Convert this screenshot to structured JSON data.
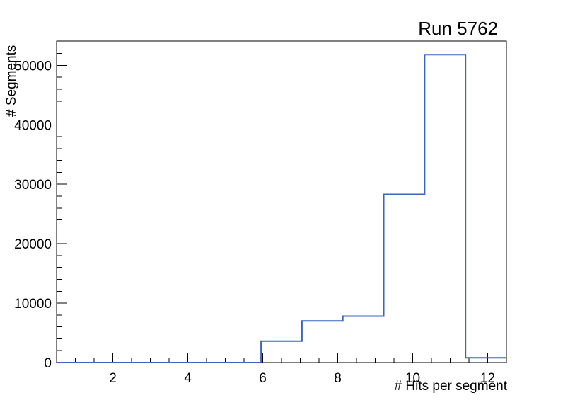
{
  "chart_data": {
    "type": "step-histogram",
    "title": "Run 5762",
    "xlabel": "# Hits per segment",
    "ylabel": "# Segments",
    "xlim": [
      0.5,
      12.5
    ],
    "ylim": [
      0,
      54100
    ],
    "bins": {
      "edges": [
        0.5,
        1.591,
        2.682,
        3.773,
        4.864,
        5.955,
        7.045,
        8.136,
        9.227,
        10.318,
        11.409,
        12.5
      ],
      "counts": [
        0,
        0,
        0,
        0,
        0,
        3600,
        7000,
        7800,
        28300,
        51800,
        800
      ]
    },
    "x_major_ticks": [
      2,
      4,
      6,
      8,
      10,
      12
    ],
    "x_minor_tick_step": 0.5,
    "y_major_ticks": [
      0,
      10000,
      20000,
      30000,
      40000,
      50000
    ],
    "y_major_tick_labels": [
      "0",
      "10000",
      "20000",
      "30000",
      "40000",
      "50000"
    ],
    "y_minor_tick_step": 2000,
    "grid": false,
    "legend": null,
    "line_color": "#3a65c0",
    "frame_color": "#000000",
    "background_color": "#ffffff"
  }
}
